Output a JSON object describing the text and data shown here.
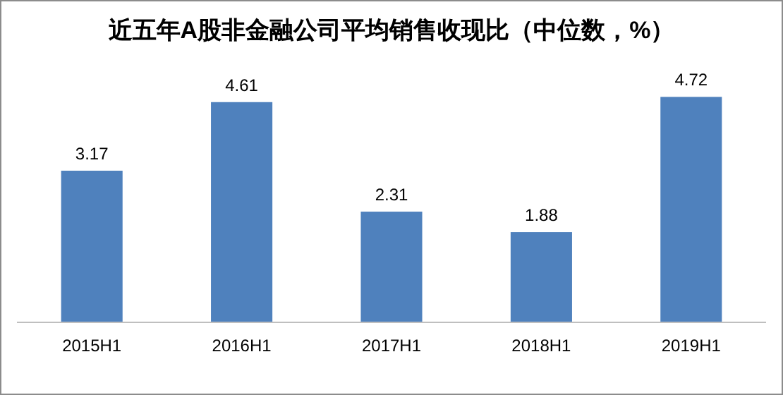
{
  "chart_data": {
    "type": "bar",
    "title": "近五年A股非金融公司平均销售收现比（中位数，%）",
    "categories": [
      "2015H1",
      "2016H1",
      "2017H1",
      "2018H1",
      "2019H1"
    ],
    "values": [
      3.17,
      4.61,
      2.31,
      1.88,
      4.72
    ],
    "color": "#4f81bd",
    "data_labels": true
  }
}
